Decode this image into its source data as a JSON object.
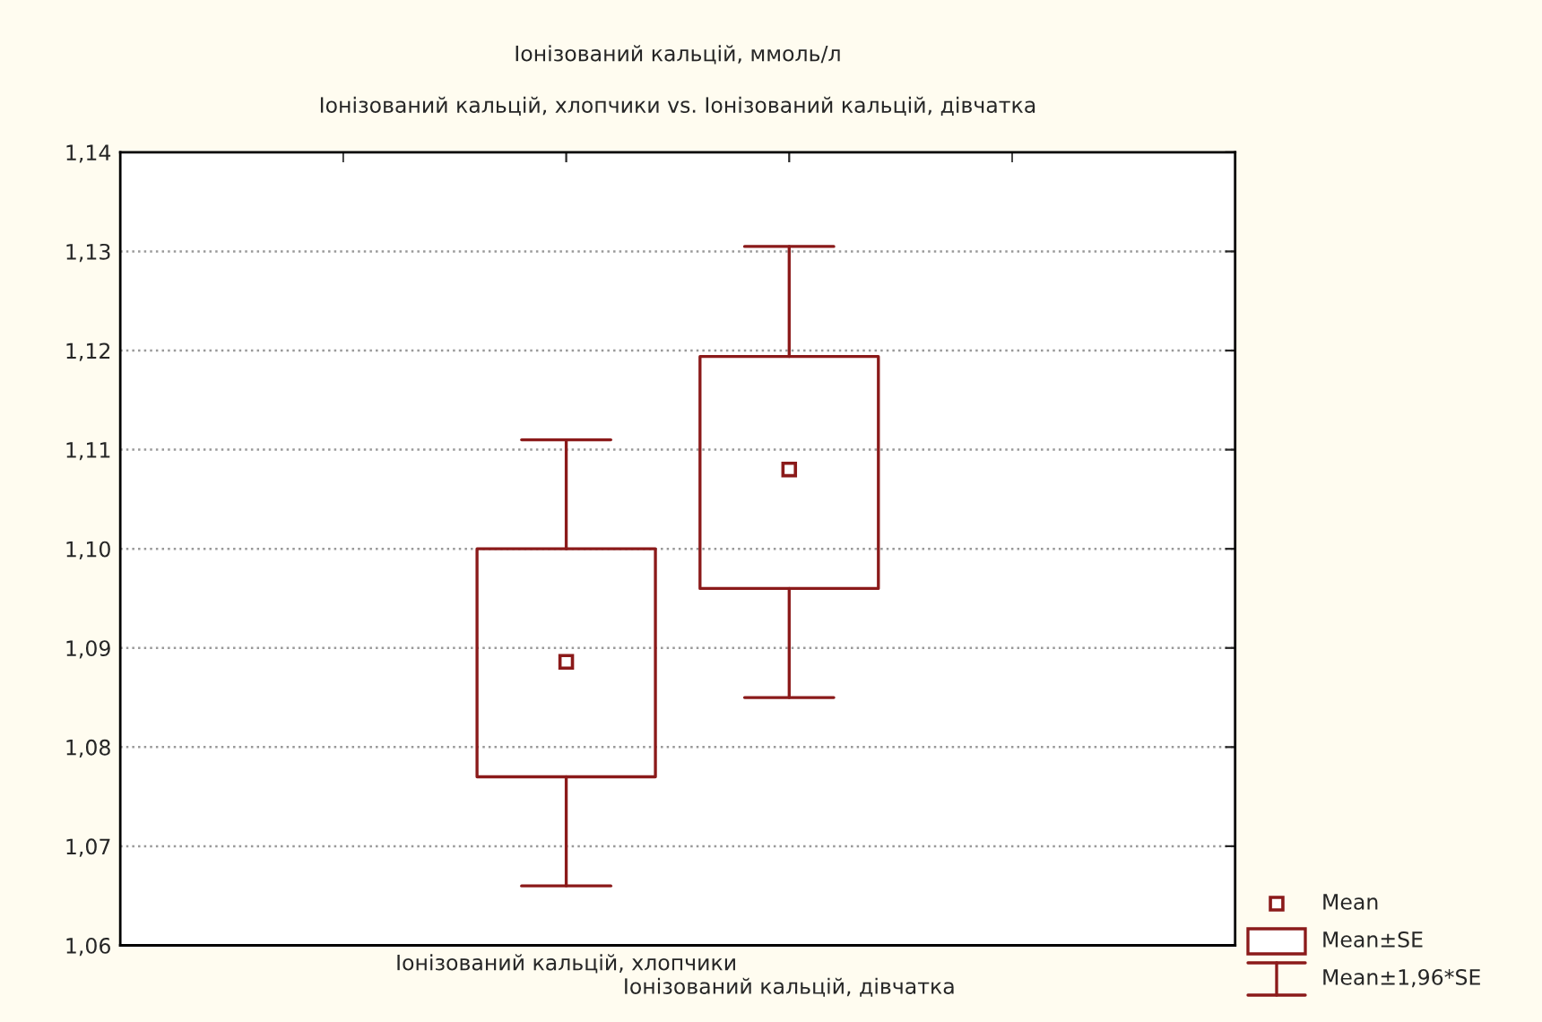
{
  "chart_data": {
    "type": "box",
    "title": "Іонізований кальцій, ммоль/л",
    "subtitle": "Іонізований кальцій, хлопчики vs. Іонізований кальцій, дівчатка",
    "categories": [
      "Іонізований кальцій, хлопчики",
      "Іонізований кальцій, дівчатка"
    ],
    "boxes": [
      {
        "low": 1.066,
        "q1": 1.077,
        "median": 1.0886,
        "q3": 1.1,
        "high": 1.111
      },
      {
        "low": 1.085,
        "q1": 1.096,
        "median": 1.108,
        "q3": 1.1194,
        "high": 1.1305
      }
    ],
    "color": "#8b1a1a",
    "annotations": [
      "Mean",
      "Mean±SE",
      "Mean±1,96*SE"
    ],
    "ylim": [
      1.06,
      1.14
    ],
    "yticks": [
      {
        "value": 1.06,
        "label": "1,06"
      },
      {
        "value": 1.07,
        "label": "1,07"
      },
      {
        "value": 1.08,
        "label": "1,08"
      },
      {
        "value": 1.09,
        "label": "1,09"
      },
      {
        "value": 1.1,
        "label": "1,10"
      },
      {
        "value": 1.11,
        "label": "1,11"
      },
      {
        "value": 1.12,
        "label": "1,12"
      },
      {
        "value": 1.13,
        "label": "1,13"
      },
      {
        "value": 1.14,
        "label": "1,14"
      }
    ],
    "grid": "y"
  }
}
